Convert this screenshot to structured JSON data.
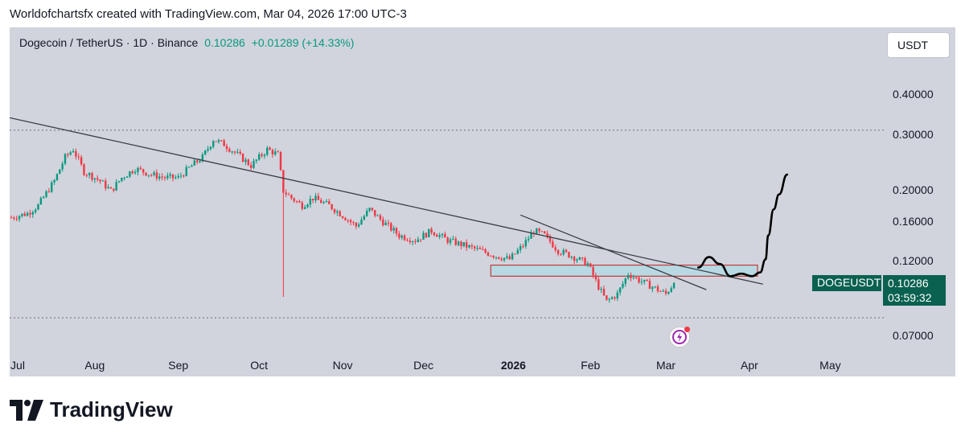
{
  "header": {
    "credit": "Worldofchartsfx created with TradingView.com, Mar 04, 2026 17:00 UTC-3"
  },
  "symbol": {
    "name": "Dogecoin / TetherUS · 1D · Binance",
    "last": "0.10286",
    "change": "+0.01289 (+14.33%)"
  },
  "currency_button": "USDT",
  "tags": {
    "symbol": "DOGEUSDT",
    "price": "0.10286",
    "countdown": "03:59:32"
  },
  "brand": {
    "name": "TradingView"
  },
  "colors": {
    "up": "#089981",
    "down": "#f23645",
    "zone_fill": "#b8d9e3",
    "zone_border": "#c23a3a",
    "trend": "#3a3d45"
  },
  "chart_data": {
    "type": "candlestick",
    "title": "Dogecoin / TetherUS · 1D · Binance",
    "yscale": "log",
    "ylim": [
      0.062,
      0.58
    ],
    "y_ticks": [
      "0.40000",
      "0.30000",
      "0.20000",
      "0.16000",
      "0.12000",
      "0.07000"
    ],
    "x_ticks": [
      "Jul",
      "Aug",
      "Sep",
      "Oct",
      "Nov",
      "Dec",
      "2026",
      "Feb",
      "Mar",
      "Apr",
      "May"
    ],
    "bold_tick": "2026",
    "price_path": [
      [
        0,
        0.165
      ],
      [
        6,
        0.17
      ],
      [
        10,
        0.18
      ],
      [
        16,
        0.215
      ],
      [
        20,
        0.255
      ],
      [
        23,
        0.27
      ],
      [
        27,
        0.23
      ],
      [
        33,
        0.215
      ],
      [
        37,
        0.2
      ],
      [
        41,
        0.22
      ],
      [
        46,
        0.235
      ],
      [
        52,
        0.225
      ],
      [
        57,
        0.22
      ],
      [
        62,
        0.22
      ],
      [
        67,
        0.24
      ],
      [
        71,
        0.255
      ],
      [
        75,
        0.29
      ],
      [
        79,
        0.28
      ],
      [
        84,
        0.26
      ],
      [
        89,
        0.24
      ],
      [
        95,
        0.27
      ],
      [
        99,
        0.26
      ],
      [
        101,
        0.2
      ],
      [
        104,
        0.19
      ],
      [
        108,
        0.18
      ],
      [
        112,
        0.19
      ],
      [
        118,
        0.18
      ],
      [
        124,
        0.165
      ],
      [
        128,
        0.155
      ],
      [
        133,
        0.175
      ],
      [
        138,
        0.16
      ],
      [
        144,
        0.145
      ],
      [
        150,
        0.14
      ],
      [
        156,
        0.15
      ],
      [
        162,
        0.14
      ],
      [
        168,
        0.135
      ],
      [
        174,
        0.13
      ],
      [
        180,
        0.125
      ],
      [
        185,
        0.122
      ],
      [
        190,
        0.135
      ],
      [
        194,
        0.15
      ],
      [
        198,
        0.145
      ],
      [
        203,
        0.13
      ],
      [
        208,
        0.125
      ],
      [
        214,
        0.118
      ],
      [
        218,
        0.1
      ],
      [
        221,
        0.09
      ],
      [
        225,
        0.095
      ],
      [
        229,
        0.11
      ],
      [
        233,
        0.105
      ],
      [
        238,
        0.1
      ],
      [
        243,
        0.095
      ],
      [
        246,
        0.103
      ]
    ],
    "spike_low": {
      "day": 101,
      "value": 0.093
    },
    "dotted_levels": [
      0.31,
      0.08
    ],
    "trendlines": [
      {
        "from": [
          -27,
          0.38
        ],
        "to": [
          279,
          0.102
        ]
      },
      {
        "from": [
          189,
          0.168
        ],
        "to": [
          258,
          0.098
        ]
      }
    ],
    "zone": {
      "from_day": 178,
      "to_day": 277,
      "low": 0.108,
      "high": 0.117
    },
    "projection": [
      [
        255,
        0.115
      ],
      [
        259,
        0.124
      ],
      [
        263,
        0.118
      ],
      [
        267,
        0.108
      ],
      [
        271,
        0.11
      ],
      [
        275,
        0.108
      ],
      [
        278,
        0.111
      ],
      [
        280,
        0.122
      ],
      [
        281,
        0.145
      ],
      [
        283,
        0.175
      ],
      [
        285,
        0.195
      ],
      [
        288,
        0.225
      ]
    ],
    "last_price": 0.10286
  }
}
